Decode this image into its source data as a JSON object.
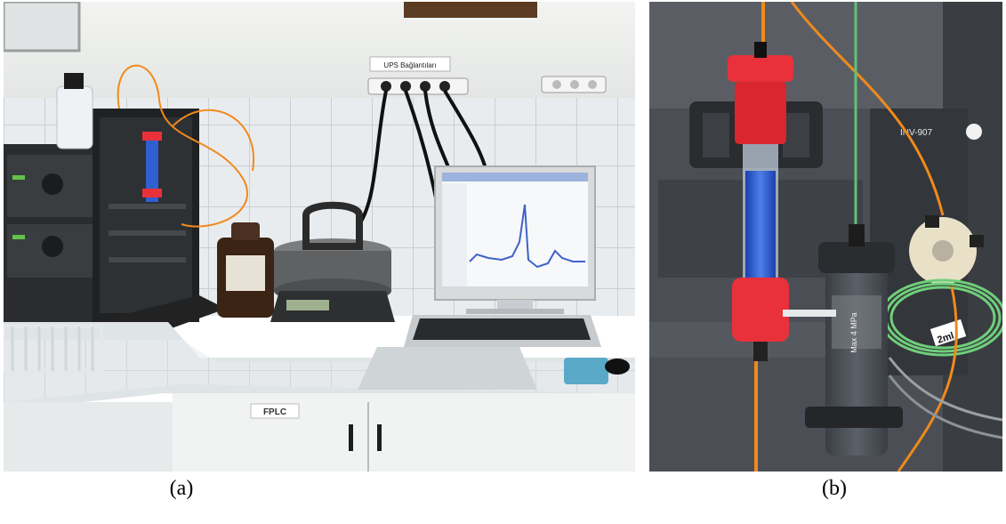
{
  "figure": {
    "panels": [
      {
        "caption": "(a)",
        "labels": {
          "sign": "UPS Bağlantıları",
          "cabinet": "FPLC"
        }
      },
      {
        "caption": "(b)",
        "labels": {
          "instrument": "INV-907",
          "tube_label": "2ml",
          "column_label": "Max 4 MPa"
        }
      }
    ]
  },
  "colors": {
    "tile": "#e9ecef",
    "grout": "#c9cfd4",
    "counter": "#dfe4e6",
    "instrument_dark": "#2a2c2e",
    "column_liquid": "#2f5fd0",
    "cap_red": "#e8313a",
    "tubing_orange": "#f08a1c",
    "tubing_green": "#6fcf7a",
    "trace_blue": "#3f63c8"
  }
}
